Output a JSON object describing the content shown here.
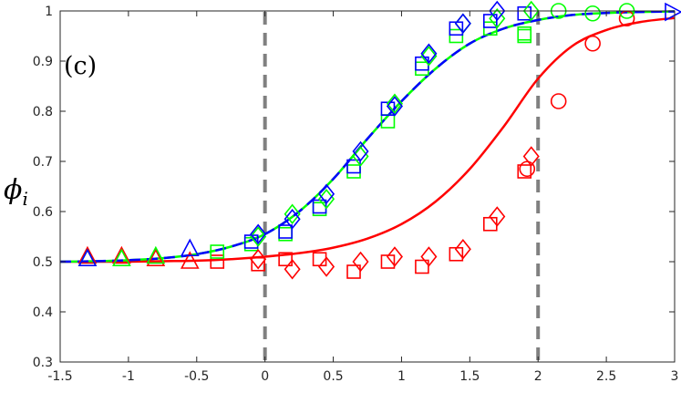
{
  "chart_data": {
    "type": "scatter",
    "title": "",
    "panel_label": "(c)",
    "xlabel": "",
    "ylabel": "ϕ",
    "ylabel_subscript": "i",
    "xlim": [
      -1.5,
      3
    ],
    "ylim": [
      0.3,
      1
    ],
    "xticks": [
      -1.5,
      -1,
      -0.5,
      0,
      0.5,
      1,
      1.5,
      2,
      2.5,
      3
    ],
    "xtick_labels": [
      "-1.5",
      "-1",
      "-0.5",
      "0",
      "0.5",
      "1",
      "1.5",
      "2",
      "2.5",
      "3"
    ],
    "yticks": [
      0.3,
      0.4,
      0.5,
      0.6,
      0.7,
      0.8,
      0.9,
      1
    ],
    "ytick_labels": [
      "0.3",
      "0.4",
      "0.5",
      "0.6",
      "0.7",
      "0.8",
      "0.9",
      "1"
    ],
    "grid": false,
    "vertical_lines": [
      {
        "x": 0,
        "color": "#808080",
        "style": "dashed"
      },
      {
        "x": 2,
        "color": "#808080",
        "style": "dashed"
      }
    ],
    "curves": [
      {
        "color": "#ff0000",
        "style": "solid",
        "x": [
          -1.5,
          -1.25,
          -1,
          -0.75,
          -0.5,
          -0.25,
          0,
          0.25,
          0.5,
          0.75,
          1,
          1.25,
          1.5,
          1.75,
          2,
          2.25,
          2.5,
          2.75,
          3
        ],
        "y": [
          0.5,
          0.5,
          0.5,
          0.501,
          0.502,
          0.505,
          0.51,
          0.517,
          0.528,
          0.546,
          0.575,
          0.62,
          0.685,
          0.77,
          0.865,
          0.93,
          0.962,
          0.978,
          0.986
        ]
      },
      {
        "color": "#00ff00",
        "style": "solid",
        "x": [
          -1.5,
          -1.25,
          -1,
          -0.75,
          -0.5,
          -0.25,
          0,
          0.25,
          0.5,
          0.75,
          1,
          1.25,
          1.5,
          1.75,
          2,
          2.25,
          2.5,
          2.75,
          3
        ],
        "y": [
          0.5,
          0.501,
          0.503,
          0.507,
          0.515,
          0.53,
          0.555,
          0.6,
          0.665,
          0.745,
          0.82,
          0.885,
          0.935,
          0.965,
          0.982,
          0.992,
          0.996,
          0.998,
          0.999
        ]
      },
      {
        "color": "#0000ff",
        "style": "dashed",
        "x": [
          -1.5,
          -1.25,
          -1,
          -0.75,
          -0.5,
          -0.25,
          0,
          0.25,
          0.5,
          0.75,
          1,
          1.25,
          1.5,
          1.75,
          2,
          2.25,
          2.5,
          2.75,
          3
        ],
        "y": [
          0.5,
          0.501,
          0.503,
          0.507,
          0.515,
          0.53,
          0.555,
          0.6,
          0.665,
          0.745,
          0.82,
          0.885,
          0.935,
          0.965,
          0.982,
          0.992,
          0.996,
          0.998,
          0.999
        ]
      }
    ],
    "markers": [
      {
        "shape": "triangle-up",
        "color": "#ff0000",
        "x": [
          -1.3,
          -1.05,
          -0.8,
          -0.55
        ],
        "y": [
          0.51,
          0.51,
          0.505,
          0.5
        ]
      },
      {
        "shape": "triangle-up",
        "color": "#00ff00",
        "x": [
          -1.3,
          -1.05,
          -0.8
        ],
        "y": [
          0.505,
          0.505,
          0.51
        ]
      },
      {
        "shape": "triangle-up",
        "color": "#0000ff",
        "x": [
          -1.3,
          -0.55
        ],
        "y": [
          0.505,
          0.525
        ]
      },
      {
        "shape": "square",
        "color": "#ff0000",
        "x": [
          -0.35,
          -0.05,
          0.15,
          0.4,
          0.65,
          0.9,
          1.15,
          1.4,
          1.65,
          1.9
        ],
        "y": [
          0.5,
          0.495,
          0.505,
          0.505,
          0.48,
          0.5,
          0.49,
          0.515,
          0.575,
          0.68
        ]
      },
      {
        "shape": "square",
        "color": "#00ff00",
        "x": [
          -0.35,
          -0.1,
          0.15,
          0.4,
          0.65,
          0.9,
          1.15,
          1.4,
          1.65,
          1.9,
          1.9
        ],
        "y": [
          0.52,
          0.535,
          0.555,
          0.605,
          0.68,
          0.78,
          0.885,
          0.95,
          0.965,
          0.955,
          0.95
        ]
      },
      {
        "shape": "square",
        "color": "#0000ff",
        "x": [
          -0.1,
          0.15,
          0.4,
          0.65,
          0.9,
          1.15,
          1.4,
          1.65,
          1.9
        ],
        "y": [
          0.54,
          0.56,
          0.61,
          0.69,
          0.805,
          0.895,
          0.965,
          0.98,
          0.995
        ]
      },
      {
        "shape": "diamond",
        "color": "#ff0000",
        "x": [
          -0.05,
          0.2,
          0.45,
          0.7,
          0.95,
          1.2,
          1.45,
          1.7,
          1.95
        ],
        "y": [
          0.505,
          0.485,
          0.49,
          0.5,
          0.51,
          0.51,
          0.525,
          0.59,
          0.71
        ]
      },
      {
        "shape": "diamond",
        "color": "#00ff00",
        "x": [
          -0.05,
          0.2,
          0.45,
          0.7,
          0.95,
          1.2,
          1.45,
          1.7,
          1.95
        ],
        "y": [
          0.55,
          0.595,
          0.625,
          0.71,
          0.815,
          0.91,
          0.975,
          0.985,
          1.0
        ]
      },
      {
        "shape": "diamond",
        "color": "#0000ff",
        "x": [
          -0.05,
          0.2,
          0.45,
          0.7,
          0.95,
          1.2,
          1.45,
          1.7
        ],
        "y": [
          0.555,
          0.585,
          0.635,
          0.72,
          0.81,
          0.915,
          0.975,
          1.0
        ]
      },
      {
        "shape": "circle",
        "color": "#ff0000",
        "x": [
          1.92,
          2.15,
          2.4,
          2.65
        ],
        "y": [
          0.685,
          0.82,
          0.935,
          0.985
        ]
      },
      {
        "shape": "circle",
        "color": "#00ff00",
        "x": [
          2.15,
          2.4,
          2.65
        ],
        "y": [
          1.0,
          0.995,
          1.0
        ]
      },
      {
        "shape": "triangle-right",
        "color": "#0000ff",
        "x": [
          2.98
        ],
        "y": [
          0.998
        ]
      }
    ]
  }
}
